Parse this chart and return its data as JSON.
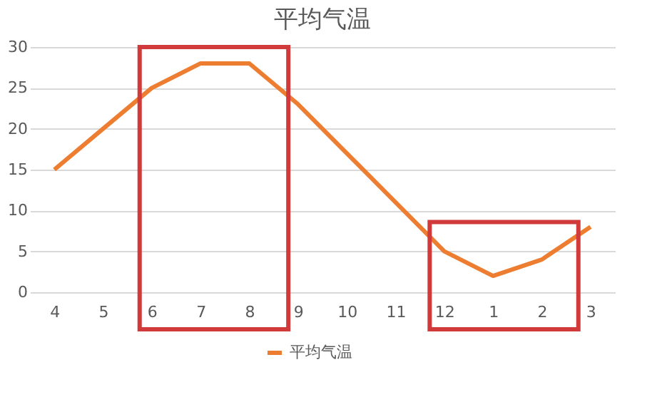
{
  "chart_data": {
    "type": "line",
    "title": "平均气温",
    "categories": [
      "4",
      "5",
      "6",
      "7",
      "8",
      "9",
      "10",
      "11",
      "12",
      "1",
      "2",
      "3"
    ],
    "series": [
      {
        "name": "平均气温",
        "color": "#ed7d31",
        "values": [
          15,
          20,
          25,
          28,
          28,
          23,
          17,
          11,
          5,
          2,
          4,
          8
        ]
      }
    ],
    "ylim": [
      0,
      30
    ],
    "yticks": [
      0,
      5,
      10,
      15,
      20,
      25,
      30
    ],
    "grid": "y",
    "legend": "bottom",
    "marker": "none",
    "line_style": "solid"
  }
}
